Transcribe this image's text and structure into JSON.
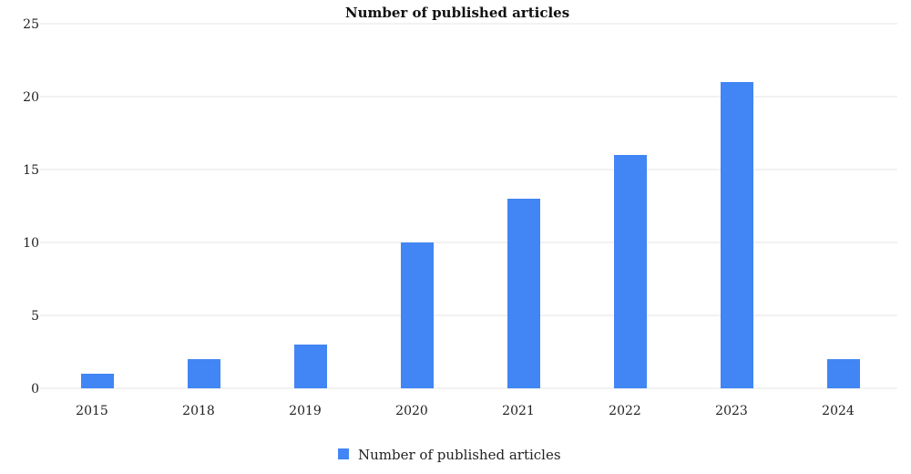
{
  "chart_data": {
    "type": "bar",
    "title": "Number of published articles",
    "categories": [
      "2015",
      "2018",
      "2019",
      "2020",
      "2021",
      "2022",
      "2023",
      "2024"
    ],
    "series": [
      {
        "name": "Number of published articles",
        "values": [
          1,
          2,
          3,
          10,
          13,
          16,
          21,
          2
        ],
        "color": "#4285f4"
      }
    ],
    "xlabel": "",
    "ylabel": "",
    "ylim": [
      0,
      25
    ],
    "yticks": [
      0,
      5,
      10,
      15,
      20,
      25
    ],
    "grid": true,
    "legend": "bottom-center"
  }
}
